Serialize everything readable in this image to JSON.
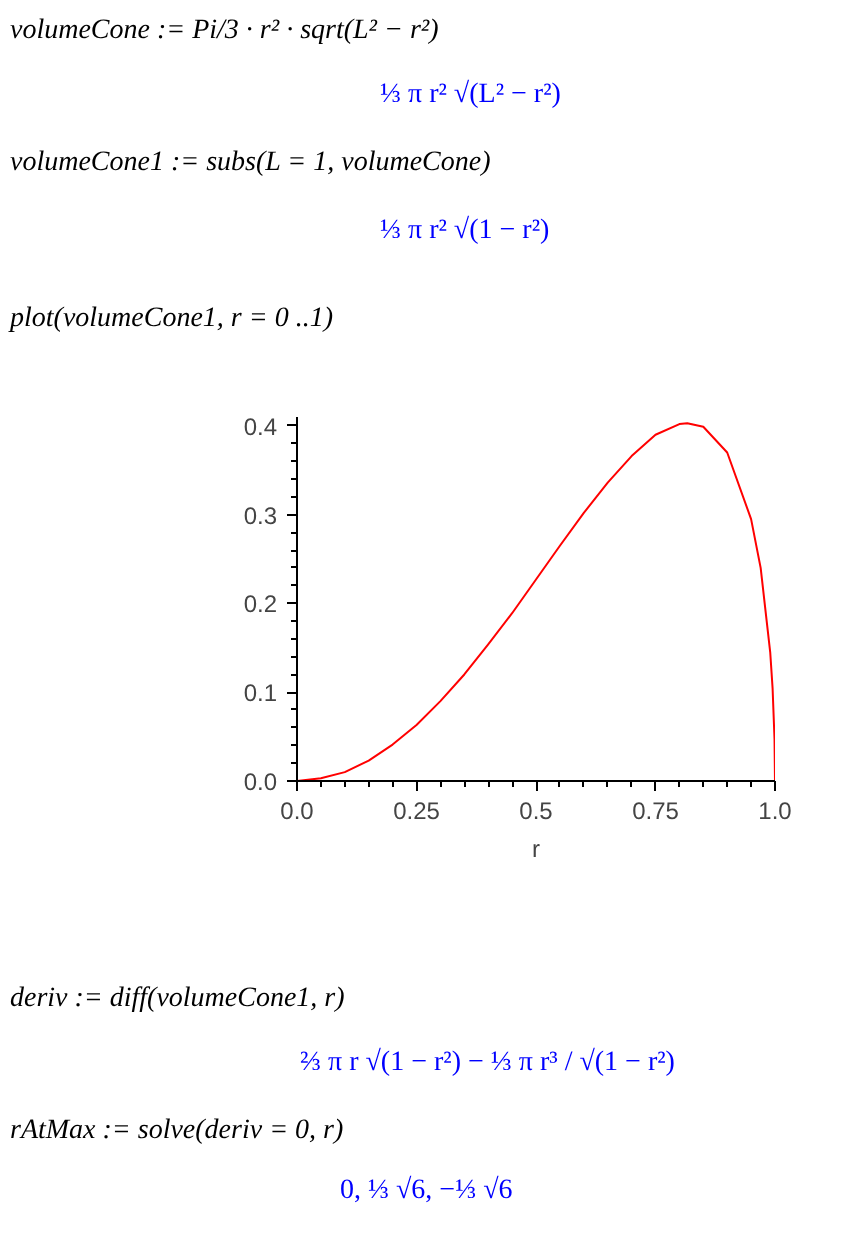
{
  "chart_data": {
    "type": "line",
    "xlabel": "r",
    "x": [
      0,
      0.05,
      0.1,
      0.15,
      0.2,
      0.25,
      0.3,
      0.35,
      0.4,
      0.45,
      0.5,
      0.55,
      0.6,
      0.65,
      0.7,
      0.75,
      0.8,
      0.8165,
      0.85,
      0.9,
      0.95,
      0.97,
      0.99,
      0.995,
      0.999,
      1.0
    ],
    "series": [
      {
        "color": "#ff0000",
        "values": [
          0,
          0.003,
          0.01,
          0.023,
          0.041,
          0.063,
          0.09,
          0.12,
          0.154,
          0.189,
          0.227,
          0.265,
          0.302,
          0.336,
          0.366,
          0.39,
          0.402,
          0.403,
          0.399,
          0.37,
          0.295,
          0.24,
          0.145,
          0.104,
          0.047,
          0
        ]
      }
    ],
    "xlim": [
      0,
      1.0
    ],
    "ylim": [
      0,
      0.41
    ],
    "xticks": [
      {
        "value": 0,
        "label": "0.0"
      },
      0.25,
      0.5,
      0.75,
      {
        "value": 1,
        "label": "1.0"
      }
    ],
    "yticks": [
      {
        "value": 0,
        "label": "0.0"
      },
      0.1,
      0.2,
      0.3,
      0.4
    ],
    "grid": false,
    "marker": "none",
    "line_style": "solid",
    "annotations": [
      "volumeCone := Pi/3 · r² · sqrt(L² − r²)",
      "⅓ π r² √(L² − r²)",
      "volumeCone1 := subs(L = 1, volumeCone)",
      "⅓ π r² √(1 − r²)",
      "plot(volumeCone1, r = 0 ..1)",
      "deriv := diff(volumeCone1, r)",
      "⅔ π r √(1 − r²) − ⅓ π r³ / √(1 − r²)",
      "rAtMax := solve(deriv = 0, r)",
      "0, ⅓ √6, −⅓ √6"
    ]
  }
}
